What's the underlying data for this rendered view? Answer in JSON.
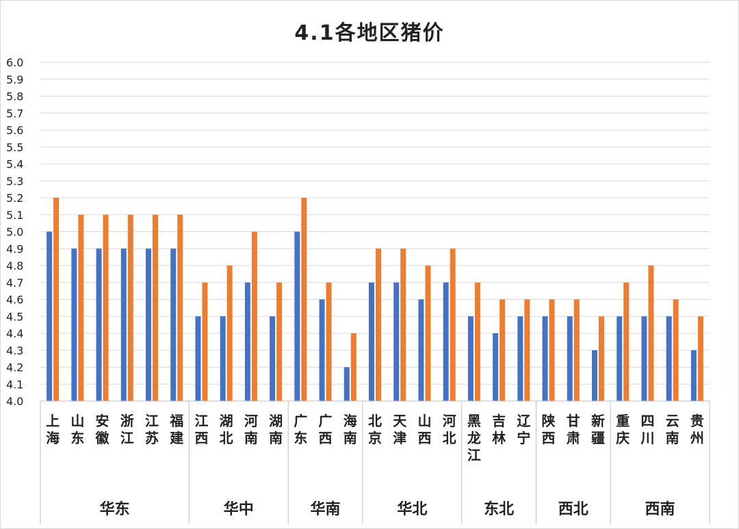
{
  "chart_data": {
    "type": "bar",
    "title": "4.1各地区猪价",
    "xlabel": "",
    "ylabel": "",
    "ylim": [
      4.0,
      6.0
    ],
    "yticks": [
      "4.0",
      "4.1",
      "4.2",
      "4.3",
      "4.4",
      "4.5",
      "4.6",
      "4.7",
      "4.8",
      "4.9",
      "5.0",
      "5.1",
      "5.2",
      "5.3",
      "5.4",
      "5.5",
      "5.6",
      "5.7",
      "5.8",
      "5.9",
      "6.0"
    ],
    "grid": true,
    "categories": [
      "上海",
      "山东",
      "安徽",
      "浙江",
      "江苏",
      "福建",
      "江西",
      "湖北",
      "河南",
      "湖南",
      "广东",
      "广西",
      "海南",
      "北京",
      "天津",
      "山西",
      "河北",
      "黑龙江",
      "吉林",
      "辽宁",
      "陕西",
      "甘肃",
      "新疆",
      "重庆",
      "四川",
      "云南",
      "贵州"
    ],
    "groups": [
      {
        "name": "华东",
        "start": 0,
        "count": 6
      },
      {
        "name": "华中",
        "start": 6,
        "count": 4
      },
      {
        "name": "华南",
        "start": 10,
        "count": 3
      },
      {
        "name": "华北",
        "start": 13,
        "count": 4
      },
      {
        "name": "东北",
        "start": 17,
        "count": 3
      },
      {
        "name": "西北",
        "start": 20,
        "count": 3
      },
      {
        "name": "西南",
        "start": 23,
        "count": 4
      }
    ],
    "series": [
      {
        "color": "#4472C4",
        "values": [
          5.0,
          4.9,
          4.9,
          4.9,
          4.9,
          4.9,
          4.5,
          4.5,
          4.7,
          4.5,
          5.0,
          4.6,
          4.2,
          4.7,
          4.7,
          4.6,
          4.7,
          4.5,
          4.4,
          4.5,
          4.5,
          4.5,
          4.3,
          4.5,
          4.5,
          4.5,
          4.3
        ]
      },
      {
        "color": "#ED7D31",
        "values": [
          5.2,
          5.1,
          5.1,
          5.1,
          5.1,
          5.1,
          4.7,
          4.8,
          5.0,
          4.7,
          5.2,
          4.7,
          4.4,
          4.9,
          4.9,
          4.8,
          4.9,
          4.7,
          4.6,
          4.6,
          4.6,
          4.6,
          4.5,
          4.7,
          4.8,
          4.6,
          4.5
        ]
      }
    ]
  }
}
